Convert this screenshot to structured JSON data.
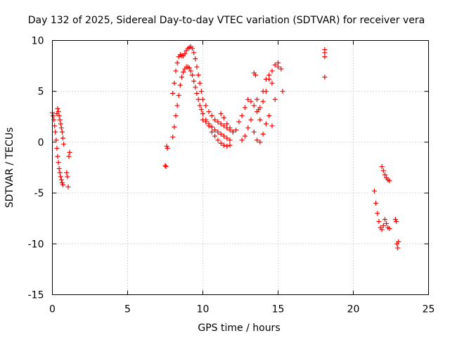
{
  "chart_data": {
    "type": "scatter",
    "title": "Day 132 of 2025, Sidereal Day-to-day VTEC variation (SDTVAR) for receiver vera",
    "xlabel": "GPS time / hours",
    "ylabel": "SDTVAR / TECUs",
    "xlim": [
      0,
      25
    ],
    "ylim": [
      -15,
      10
    ],
    "xticks": [
      0,
      5,
      10,
      15,
      20,
      25
    ],
    "yticks": [
      -15,
      -10,
      -5,
      0,
      5,
      10
    ],
    "grid": true,
    "marker": "+",
    "color": "#ff0000",
    "series": [
      {
        "name": "seg-0-start",
        "x": [
          0.0,
          0.05,
          0.1,
          0.15,
          0.2,
          0.25,
          0.3,
          0.35,
          0.4,
          0.45,
          0.5,
          0.55,
          0.6,
          0.65,
          0.7
        ],
        "y": [
          2.9,
          2.6,
          2.2,
          1.6,
          1.0,
          0.2,
          -0.6,
          -1.4,
          -2.0,
          -2.6,
          -3.0,
          -3.4,
          -3.7,
          -4.0,
          -4.2
        ]
      },
      {
        "name": "seg-0-upper",
        "x": [
          0.3,
          0.35,
          0.4,
          0.45,
          0.5,
          0.55,
          0.6,
          0.65,
          0.7,
          0.75
        ],
        "y": [
          2.8,
          3.3,
          3.0,
          2.6,
          2.2,
          1.8,
          1.4,
          1.0,
          0.4,
          -0.2
        ]
      },
      {
        "name": "seg-1",
        "x": [
          0.95,
          1.0,
          1.05,
          1.1,
          1.15
        ],
        "y": [
          -3.0,
          -3.4,
          -4.4,
          -1.4,
          -1.0
        ]
      },
      {
        "name": "seg-2",
        "x": [
          7.5,
          7.55,
          7.6,
          7.65
        ],
        "y": [
          -2.3,
          -2.4,
          -0.4,
          -0.6
        ]
      },
      {
        "name": "seg-3-upper",
        "x": [
          8.0,
          8.1,
          8.2,
          8.3,
          8.4,
          8.5,
          8.6,
          8.7,
          8.8,
          8.9,
          9.0,
          9.1,
          9.2,
          9.3,
          9.4,
          9.5,
          9.6,
          9.7,
          9.8,
          9.9,
          10.0,
          10.2,
          10.4,
          10.6,
          10.8,
          11.0,
          11.2,
          11.4,
          11.6,
          11.8,
          12.0
        ],
        "y": [
          4.8,
          5.8,
          7.0,
          7.8,
          8.4,
          8.6,
          8.5,
          8.5,
          8.7,
          9.0,
          9.2,
          9.3,
          9.4,
          9.2,
          8.8,
          8.2,
          7.4,
          6.6,
          5.8,
          5.0,
          4.2,
          3.6,
          3.0,
          2.6,
          2.2,
          2.0,
          1.8,
          1.6,
          1.4,
          1.2,
          1.0
        ]
      },
      {
        "name": "seg-3-lower",
        "x": [
          8.0,
          8.1,
          8.2,
          8.3,
          8.4,
          8.5,
          8.6,
          8.7,
          8.8,
          8.9,
          9.0,
          9.1,
          9.2,
          9.3,
          9.4,
          9.5,
          9.6,
          9.7,
          9.8,
          9.9,
          10.0,
          10.2,
          10.4,
          10.6,
          10.8,
          11.0,
          11.2,
          11.4,
          11.6,
          11.8
        ],
        "y": [
          0.5,
          1.5,
          2.6,
          3.6,
          4.6,
          5.6,
          6.4,
          6.9,
          7.2,
          7.4,
          7.4,
          7.3,
          7.0,
          6.6,
          6.0,
          5.4,
          4.8,
          4.2,
          3.6,
          3.2,
          2.8,
          2.2,
          1.6,
          1.0,
          0.6,
          0.2,
          -0.1,
          -0.3,
          -0.4,
          -0.3
        ]
      },
      {
        "name": "seg-3-mid",
        "x": [
          10.0,
          10.2,
          10.4,
          10.6,
          10.8,
          11.0,
          11.2,
          11.4,
          11.6,
          11.8
        ],
        "y": [
          2.2,
          2.0,
          1.8,
          1.5,
          1.2,
          1.0,
          0.8,
          0.6,
          0.4,
          0.2
        ]
      },
      {
        "name": "seg-4",
        "x": [
          11.2,
          11.4,
          11.6,
          11.8,
          12.0,
          12.2,
          12.4,
          12.6,
          12.8,
          13.0,
          13.2,
          13.4,
          13.6,
          13.8,
          14.0,
          14.2,
          14.4,
          14.6,
          14.8,
          15.0
        ],
        "y": [
          2.8,
          2.4,
          1.8,
          1.4,
          1.0,
          1.2,
          2.0,
          2.6,
          3.4,
          4.2,
          4.0,
          3.6,
          3.0,
          3.4,
          4.0,
          5.0,
          6.2,
          7.0,
          7.6,
          7.8
        ]
      },
      {
        "name": "seg-4-low",
        "x": [
          12.6,
          12.8,
          13.0,
          13.2,
          13.4,
          13.6,
          13.8,
          14.0,
          14.2,
          14.4,
          14.6
        ],
        "y": [
          0.2,
          0.6,
          1.4,
          2.2,
          1.0,
          0.2,
          0.0,
          0.8,
          1.8,
          2.6,
          1.6
        ]
      },
      {
        "name": "seg-4-scatter",
        "x": [
          13.4,
          13.5,
          13.6,
          13.7,
          13.8,
          14.0,
          14.2,
          14.4,
          14.6,
          14.8,
          15.0,
          15.2,
          15.3
        ],
        "y": [
          6.8,
          6.6,
          4.2,
          3.2,
          2.2,
          5.0,
          6.2,
          6.6,
          5.8,
          4.2,
          7.4,
          7.2,
          5.0
        ]
      },
      {
        "name": "seg-5",
        "x": [
          18.1,
          18.1,
          18.1,
          18.1
        ],
        "y": [
          9.1,
          8.8,
          8.4,
          6.4
        ]
      },
      {
        "name": "seg-6",
        "x": [
          21.4,
          21.5,
          21.6,
          21.7,
          21.8,
          21.9,
          22.0,
          22.1,
          22.2,
          22.3,
          22.4
        ],
        "y": [
          -4.8,
          -6.0,
          -7.0,
          -7.8,
          -8.4,
          -8.6,
          -8.2,
          -7.6,
          -8.0,
          -8.4,
          -8.5
        ]
      },
      {
        "name": "seg-6-arc",
        "x": [
          21.9,
          22.0,
          22.1,
          22.2,
          22.3,
          22.4
        ],
        "y": [
          -2.4,
          -2.8,
          -3.2,
          -3.5,
          -3.7,
          -3.8
        ]
      },
      {
        "name": "seg-7",
        "x": [
          22.8,
          22.85,
          22.9,
          22.95,
          23.0
        ],
        "y": [
          -7.6,
          -7.8,
          -10.0,
          -10.4,
          -9.8
        ]
      }
    ]
  }
}
